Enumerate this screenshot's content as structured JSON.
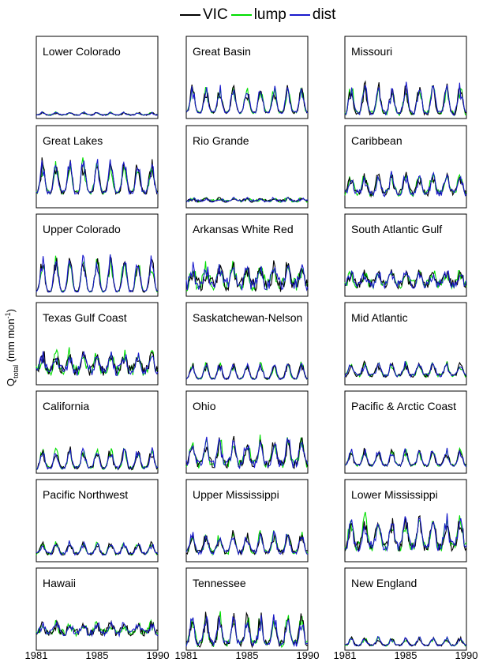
{
  "chart_data": {
    "type": "line",
    "layout": "7x3 grid of small multiples",
    "ylabel": "Q",
    "ylabel_sub": "total",
    "ylabel_unit": " (mm mon",
    "ylabel_sup": "-1",
    "ylabel_close": ")",
    "x_ticks": [
      "1981",
      "1985",
      "1990"
    ],
    "xlim": [
      1981,
      1990
    ],
    "legend_position": "top-center",
    "series": [
      {
        "name": "VIC",
        "color": "#000000"
      },
      {
        "name": "lump",
        "color": "#00dd00"
      },
      {
        "name": "dist",
        "color": "#1a1acc"
      }
    ],
    "panels": [
      {
        "title": "Lower Colorado",
        "col": 0,
        "row": 0,
        "base": 0.03,
        "peak": 0.04,
        "noise": 0.02,
        "seed": 11
      },
      {
        "title": "Great Lakes",
        "col": 0,
        "row": 1,
        "base": 0.22,
        "peak": 0.5,
        "noise": 0.07,
        "seed": 12
      },
      {
        "title": "Upper Colorado",
        "col": 0,
        "row": 2,
        "base": 0.05,
        "peak": 0.55,
        "noise": 0.03,
        "seed": 13
      },
      {
        "title": "Texas Gulf Coast",
        "col": 0,
        "row": 3,
        "base": 0.18,
        "peak": 0.28,
        "noise": 0.18,
        "seed": 14
      },
      {
        "title": "California",
        "col": 0,
        "row": 4,
        "base": 0.05,
        "peak": 0.3,
        "noise": 0.06,
        "seed": 15
      },
      {
        "title": "Pacific Northwest",
        "col": 0,
        "row": 5,
        "base": 0.1,
        "peak": 0.18,
        "noise": 0.05,
        "seed": 16
      },
      {
        "title": "Hawaii",
        "col": 0,
        "row": 6,
        "base": 0.25,
        "peak": 0.15,
        "noise": 0.12,
        "seed": 17
      },
      {
        "title": "Great Basin",
        "col": 1,
        "row": 0,
        "base": 0.07,
        "peak": 0.4,
        "noise": 0.04,
        "seed": 21
      },
      {
        "title": "Rio Grande",
        "col": 1,
        "row": 1,
        "base": 0.08,
        "peak": 0.04,
        "noise": 0.05,
        "seed": 22
      },
      {
        "title": "Arkansas White Red",
        "col": 1,
        "row": 2,
        "base": 0.12,
        "peak": 0.3,
        "noise": 0.25,
        "seed": 23
      },
      {
        "title": "Saskatchewan-Nelson",
        "col": 1,
        "row": 3,
        "base": 0.07,
        "peak": 0.25,
        "noise": 0.03,
        "seed": 24
      },
      {
        "title": "Ohio",
        "col": 1,
        "row": 4,
        "base": 0.1,
        "peak": 0.4,
        "noise": 0.15,
        "seed": 25
      },
      {
        "title": "Upper Mississippi",
        "col": 1,
        "row": 5,
        "base": 0.12,
        "peak": 0.3,
        "noise": 0.08,
        "seed": 26
      },
      {
        "title": "Tennessee",
        "col": 1,
        "row": 6,
        "base": 0.06,
        "peak": 0.45,
        "noise": 0.12,
        "seed": 27
      },
      {
        "title": "Missouri",
        "col": 2,
        "row": 0,
        "base": 0.05,
        "peak": 0.45,
        "noise": 0.08,
        "seed": 31
      },
      {
        "title": "Caribbean",
        "col": 2,
        "row": 1,
        "base": 0.2,
        "peak": 0.3,
        "noise": 0.12,
        "seed": 32
      },
      {
        "title": "South Atlantic Gulf",
        "col": 2,
        "row": 2,
        "base": 0.15,
        "peak": 0.2,
        "noise": 0.15,
        "seed": 33
      },
      {
        "title": "Mid Atlantic",
        "col": 2,
        "row": 3,
        "base": 0.12,
        "peak": 0.2,
        "noise": 0.06,
        "seed": 34
      },
      {
        "title": "Pacific & Arctic Coast",
        "col": 2,
        "row": 4,
        "base": 0.1,
        "peak": 0.25,
        "noise": 0.04,
        "seed": 35
      },
      {
        "title": "Lower Mississippi",
        "col": 2,
        "row": 5,
        "base": 0.2,
        "peak": 0.45,
        "noise": 0.18,
        "seed": 36
      },
      {
        "title": "New England",
        "col": 2,
        "row": 6,
        "base": 0.05,
        "peak": 0.12,
        "noise": 0.03,
        "seed": 37
      }
    ]
  }
}
